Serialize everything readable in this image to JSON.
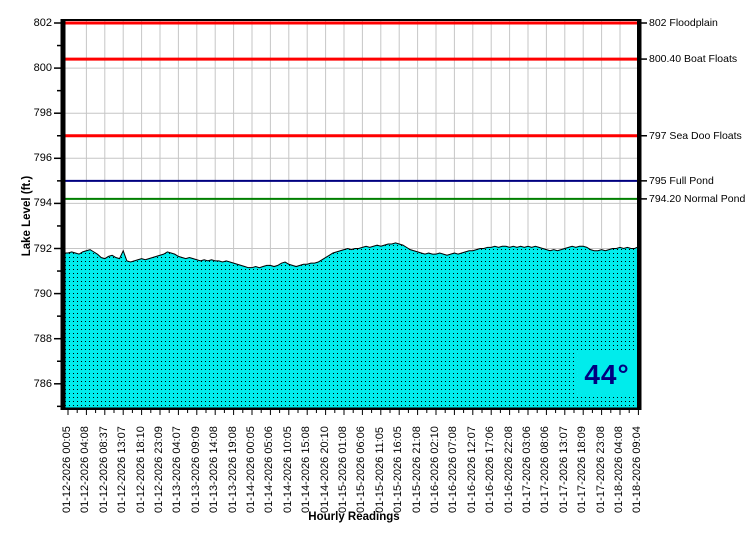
{
  "chart_data": {
    "type": "area",
    "title": "",
    "xlabel": "Hourly Readings",
    "ylabel": "Lake Level (ft.)",
    "ylim": [
      785,
      802
    ],
    "y_ticks": [
      786,
      788,
      790,
      792,
      794,
      796,
      798,
      800,
      802
    ],
    "grid": true,
    "label_every_n_points": 5,
    "x_tick_labels": [
      "01-12-2026 00:05",
      "01-12-2026 04:08",
      "01-12-2026 08:37",
      "01-12-2026 13:07",
      "01-12-2026 18:10",
      "01-12-2026 23:09",
      "01-13-2026 04:07",
      "01-13-2026 09:09",
      "01-13-2026 14:08",
      "01-13-2026 19:08",
      "01-14-2026 00:05",
      "01-14-2026 05:06",
      "01-14-2026 10:05",
      "01-14-2026 15:08",
      "01-14-2026 20:10",
      "01-15-2026 01:08",
      "01-15-2026 06:06",
      "01-15-2026 11:05",
      "01-15-2026 16:05",
      "01-15-2026 21:08",
      "01-16-2026 02:10",
      "01-16-2026 07:08",
      "01-16-2026 12:07",
      "01-16-2026 17:06",
      "01-16-2026 22:08",
      "01-17-2026 03:06",
      "01-17-2026 08:06",
      "01-17-2026 13:07",
      "01-17-2026 18:09",
      "01-17-2026 23:08",
      "01-18-2026 04:08",
      "01-18-2026 09:04"
    ],
    "series": [
      {
        "name": "Lake Level",
        "values": [
          791.8,
          791.85,
          791.8,
          791.75,
          791.85,
          791.9,
          791.95,
          791.85,
          791.75,
          791.6,
          791.55,
          791.65,
          791.7,
          791.6,
          791.55,
          791.9,
          791.45,
          791.4,
          791.45,
          791.5,
          791.55,
          791.5,
          791.55,
          791.6,
          791.65,
          791.7,
          791.75,
          791.85,
          791.8,
          791.75,
          791.65,
          791.6,
          791.55,
          791.6,
          791.55,
          791.5,
          791.45,
          791.5,
          791.45,
          791.5,
          791.45,
          791.45,
          791.4,
          791.45,
          791.4,
          791.35,
          791.3,
          791.25,
          791.2,
          791.15,
          791.15,
          791.2,
          791.15,
          791.2,
          791.25,
          791.25,
          791.2,
          791.25,
          791.35,
          791.4,
          791.3,
          791.25,
          791.2,
          791.25,
          791.3,
          791.3,
          791.35,
          791.35,
          791.4,
          791.5,
          791.6,
          791.7,
          791.8,
          791.85,
          791.9,
          791.95,
          792.0,
          791.95,
          792.0,
          792.0,
          792.05,
          792.1,
          792.05,
          792.1,
          792.15,
          792.1,
          792.15,
          792.2,
          792.2,
          792.25,
          792.2,
          792.15,
          792.05,
          791.95,
          791.9,
          791.85,
          791.8,
          791.75,
          791.8,
          791.75,
          791.75,
          791.8,
          791.75,
          791.7,
          791.75,
          791.8,
          791.75,
          791.8,
          791.85,
          791.9,
          791.9,
          791.95,
          792.0,
          792.0,
          792.05,
          792.05,
          792.1,
          792.05,
          792.1,
          792.1,
          792.05,
          792.1,
          792.05,
          792.1,
          792.05,
          792.1,
          792.05,
          792.1,
          792.05,
          792.0,
          791.95,
          791.9,
          791.95,
          791.9,
          791.95,
          792.0,
          792.05,
          792.1,
          792.05,
          792.1,
          792.1,
          792.05,
          791.95,
          791.9,
          791.9,
          791.95,
          791.9,
          791.95,
          792.0,
          792.0,
          792.05,
          792.0,
          792.05,
          792.0,
          792.0,
          792.05
        ]
      }
    ],
    "reference_lines": [
      {
        "value": 802,
        "label": "802 Floodplain",
        "color": "#FF0000",
        "width": 3
      },
      {
        "value": 800.4,
        "label": "800.40 Boat Floats",
        "color": "#FF0000",
        "width": 3
      },
      {
        "value": 797,
        "label": "797 Sea Doo Floats",
        "color": "#FF0000",
        "width": 3
      },
      {
        "value": 795,
        "label": "795 Full Pond",
        "color": "#000080",
        "width": 2
      },
      {
        "value": 794.2,
        "label": "794.20 Normal Pond",
        "color": "#007F00",
        "width": 2
      }
    ],
    "annotation": {
      "text": "44°",
      "color": "#000080",
      "background": "#00ECEC",
      "position": "bottom-right"
    },
    "colors": {
      "fill": "#00ECEC",
      "fill_dots": "#000000",
      "outline": "#000000",
      "grid": "#C6C6C6",
      "axis": "#000000",
      "background": "#FFFFFF",
      "text": "#000000"
    },
    "legend": "none"
  }
}
